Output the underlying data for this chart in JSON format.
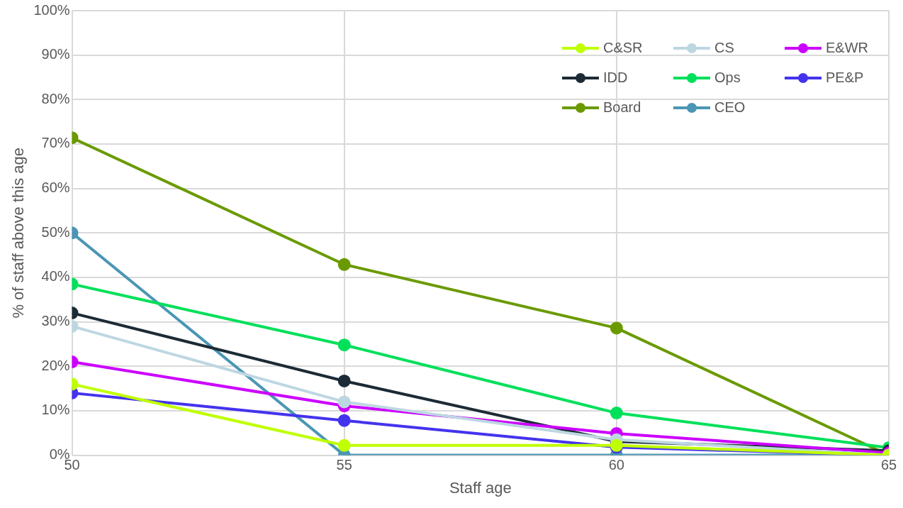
{
  "chart_data": {
    "type": "line",
    "xlabel": "Staff age",
    "ylabel": "% of staff above this age",
    "x": [
      50,
      55,
      60,
      65
    ],
    "xlim": [
      50,
      65
    ],
    "xticks": [
      50,
      55,
      60,
      65
    ],
    "ylim": [
      0,
      100
    ],
    "yticks": [
      {
        "value": 0,
        "label": "0%"
      },
      {
        "value": 10,
        "label": "10%"
      },
      {
        "value": 20,
        "label": "20%"
      },
      {
        "value": 30,
        "label": "30%"
      },
      {
        "value": 40,
        "label": "40%"
      },
      {
        "value": 50,
        "label": "50%"
      },
      {
        "value": 60,
        "label": "60%"
      },
      {
        "value": 70,
        "label": "70%"
      },
      {
        "value": 80,
        "label": "80%"
      },
      {
        "value": 90,
        "label": "90%"
      },
      {
        "value": 100,
        "label": "100%"
      }
    ],
    "grid": true,
    "legend": "top right",
    "marker": "circle",
    "line_style": "solid",
    "series": [
      {
        "name": "C&SR",
        "color": "#bfff00",
        "values": [
          16,
          2.2,
          2.2,
          0
        ]
      },
      {
        "name": "CS",
        "color": "#bdd7e2",
        "values": [
          29,
          12,
          3.5,
          0
        ]
      },
      {
        "name": "E&WR",
        "color": "#cc00ff",
        "values": [
          21,
          11.1,
          4.9,
          0.5
        ]
      },
      {
        "name": "IDD",
        "color": "#1c2b36",
        "values": [
          32,
          16.7,
          3.1,
          1
        ]
      },
      {
        "name": "Ops",
        "color": "#00e05a",
        "values": [
          38.5,
          24.8,
          9.5,
          1.7
        ]
      },
      {
        "name": "PE&P",
        "color": "#4433ee",
        "values": [
          14,
          7.8,
          1.8,
          0
        ]
      },
      {
        "name": "Board",
        "color": "#6a9a00",
        "values": [
          71.4,
          42.9,
          28.6,
          0
        ]
      },
      {
        "name": "CEO",
        "color": "#4a96b4",
        "values": [
          50,
          0,
          0,
          0
        ]
      }
    ]
  }
}
